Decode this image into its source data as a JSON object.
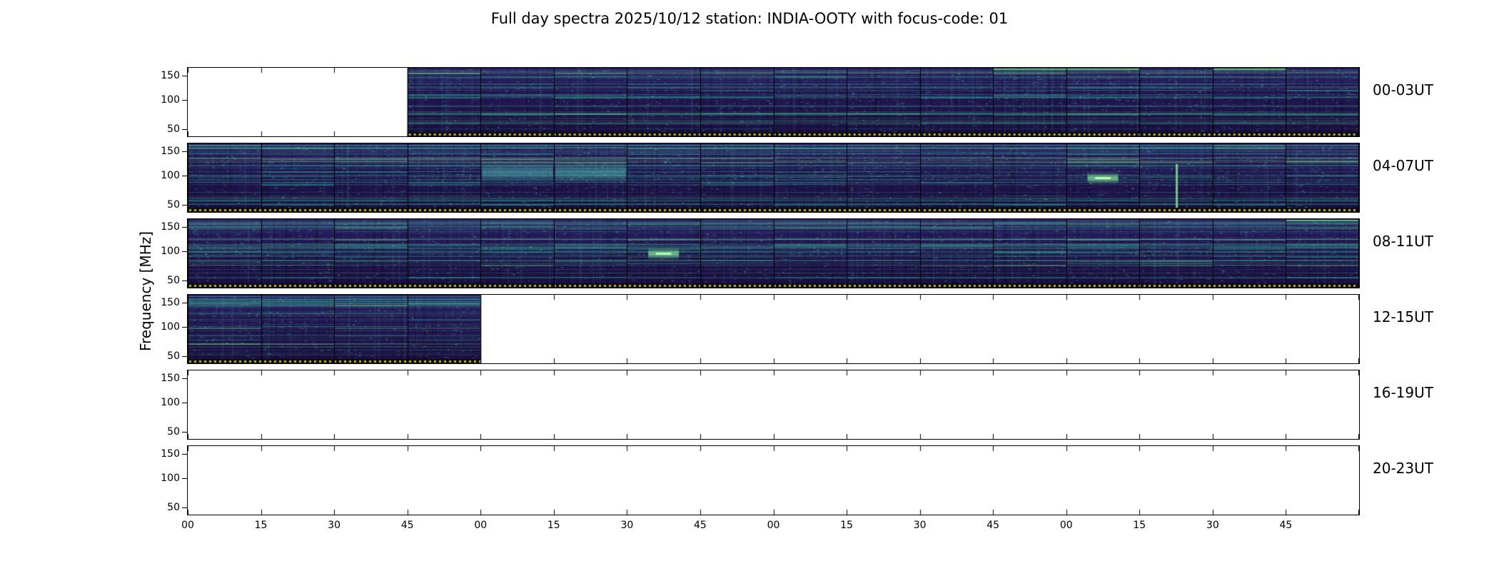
{
  "title": "Full day spectra 2025/10/12 station: INDIA-OOTY with focus-code: 01",
  "chart_data": {
    "type": "heatmap",
    "title": "Full day spectra 2025/10/12 station: INDIA-OOTY with focus-code: 01",
    "station": "INDIA-OOTY",
    "date": "2025/10/12",
    "focus_code": "01",
    "ylabel": "Frequency [MHz]",
    "y_tick_labels": [
      "150",
      "100",
      "50"
    ],
    "x_tick_labels": [
      "00",
      "15",
      "30",
      "45",
      "00",
      "15",
      "30",
      "45",
      "00",
      "15",
      "30",
      "45",
      "00",
      "15",
      "30",
      "45"
    ],
    "segments_per_row": 16,
    "segment_minutes": 15,
    "colormap": "viridis",
    "grid": "off",
    "legend": "none",
    "rows": [
      {
        "label": "00-03UT",
        "filled": [
          0,
          0,
          0,
          1,
          1,
          1,
          1,
          1,
          1,
          1,
          1,
          1,
          1,
          1,
          1,
          1
        ]
      },
      {
        "label": "04-07UT",
        "filled": [
          1,
          1,
          1,
          1,
          1,
          1,
          1,
          1,
          1,
          1,
          1,
          1,
          1,
          1,
          1,
          1
        ]
      },
      {
        "label": "08-11UT",
        "filled": [
          1,
          1,
          1,
          1,
          1,
          1,
          1,
          1,
          1,
          1,
          1,
          1,
          1,
          1,
          1,
          1
        ]
      },
      {
        "label": "12-15UT",
        "filled": [
          1,
          1,
          1,
          1,
          0,
          0,
          0,
          0,
          0,
          0,
          0,
          0,
          0,
          0,
          0,
          0
        ]
      },
      {
        "label": "16-19UT",
        "filled": [
          0,
          0,
          0,
          0,
          0,
          0,
          0,
          0,
          0,
          0,
          0,
          0,
          0,
          0,
          0,
          0
        ]
      },
      {
        "label": "20-23UT",
        "filled": [
          0,
          0,
          0,
          0,
          0,
          0,
          0,
          0,
          0,
          0,
          0,
          0,
          0,
          0,
          0,
          0
        ]
      }
    ],
    "features": [
      {
        "row": 1,
        "seg": 4,
        "kind": "bright-band"
      },
      {
        "row": 1,
        "seg": 5,
        "kind": "bright-band"
      },
      {
        "row": 1,
        "seg": 12,
        "kind": "bright-blob"
      },
      {
        "row": 1,
        "seg": 13,
        "kind": "vertical-streak"
      },
      {
        "row": 0,
        "seg": 11,
        "kind": "top-line"
      },
      {
        "row": 0,
        "seg": 12,
        "kind": "top-line"
      },
      {
        "row": 0,
        "seg": 14,
        "kind": "top-line"
      },
      {
        "row": 2,
        "seg": 6,
        "kind": "bright-blob"
      },
      {
        "row": 2,
        "seg": 15,
        "kind": "top-line"
      }
    ],
    "colors": {
      "base": "#2a1b62",
      "base_dark": "#221352",
      "streak": "#2aa795",
      "bright": "#6fdc8c",
      "dotted_line": "#b9be00",
      "axis": "#000000",
      "background": "#ffffff"
    }
  }
}
